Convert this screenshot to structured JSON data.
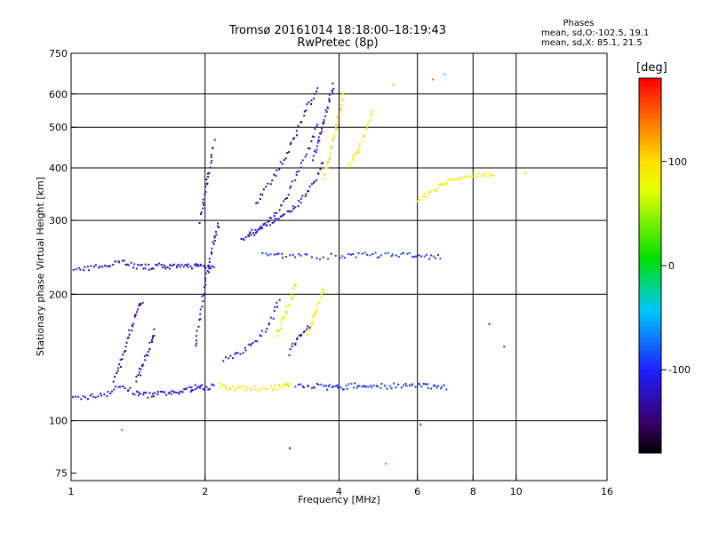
{
  "header": {
    "title_line1": "Tromsø 20161014 18:18:00–18:19:43",
    "title_line2": "RwPretec (8p)",
    "phases_label": "Phases",
    "stat_o": "mean, sd,O:-102.5, 19.1",
    "stat_x": "mean, sd,X:  85.1, 21.5"
  },
  "colorbar": {
    "title": "[deg]",
    "ticks": [
      "100",
      "0",
      "-100"
    ],
    "tick_values": [
      100,
      0,
      -100
    ],
    "range": [
      -180,
      180
    ]
  },
  "chart_data": {
    "type": "scatter",
    "title": "Tromsø 20161014 18:18:00–18:19:43",
    "subtitle": "RwPretec (8p)",
    "xlabel": "Frequency [MHz]",
    "ylabel": "Stationary phase Virtual Height [km]",
    "x_scale": "log",
    "y_scale": "log",
    "xlim": [
      1,
      16
    ],
    "ylim": [
      72,
      750
    ],
    "x_ticks": [
      1,
      2,
      4,
      6,
      8,
      10,
      16
    ],
    "x_tick_labels": [
      "1",
      "2",
      "4",
      "6",
      "8",
      "10",
      "16"
    ],
    "y_ticks": [
      75,
      100,
      200,
      300,
      400,
      500,
      600,
      750
    ],
    "y_tick_labels": [
      "75",
      "100",
      "200",
      "300",
      "400",
      "500",
      "600",
      "750"
    ],
    "x_grid": [
      2,
      4,
      6,
      8,
      10
    ],
    "y_grid": [
      100,
      200,
      300,
      400,
      500,
      600
    ],
    "grid": true,
    "color_by": "phase_deg",
    "traces": [
      {
        "f": [
          1.0,
          1.1,
          1.2,
          1.3,
          1.4,
          1.5,
          1.6,
          1.7,
          1.8,
          1.9,
          2.0,
          2.1
        ],
        "h": [
          113,
          114,
          116,
          121,
          116,
          115,
          116,
          116,
          118,
          120,
          120,
          121
        ],
        "phase": -112
      },
      {
        "f": [
          1.0,
          1.1,
          1.2,
          1.3,
          1.4,
          1.5,
          1.6,
          1.7,
          1.8,
          1.9,
          2.0,
          2.1
        ],
        "h": [
          228,
          230,
          236,
          240,
          233,
          232,
          234,
          232,
          233,
          234,
          233,
          234
        ],
        "phase": -118
      },
      {
        "f": [
          1.25,
          1.3,
          1.35,
          1.4,
          1.45
        ],
        "h": [
          125,
          140,
          160,
          180,
          195
        ],
        "phase": -128
      },
      {
        "f": [
          1.4,
          1.45,
          1.5,
          1.55
        ],
        "h": [
          125,
          135,
          150,
          165
        ],
        "phase": -125
      },
      {
        "f": [
          1.9,
          1.95,
          2.0,
          2.05,
          2.1,
          2.15
        ],
        "h": [
          150,
          180,
          210,
          240,
          270,
          300
        ],
        "phase": -120
      },
      {
        "f": [
          1.95,
          2.0,
          2.05,
          2.1
        ],
        "h": [
          300,
          350,
          400,
          470
        ],
        "phase": -130
      },
      {
        "f": [
          2.15,
          2.3,
          2.5,
          2.8,
          3.0,
          3.1
        ],
        "h": [
          122,
          120,
          119,
          120,
          121,
          122
        ],
        "phase": 95
      },
      {
        "f": [
          3.2,
          3.5,
          3.8,
          4.0,
          4.3,
          4.6,
          5.0,
          5.5,
          6.0,
          6.5,
          7.0
        ],
        "h": [
          121,
          121,
          120,
          120,
          121,
          121,
          121,
          121,
          121,
          121,
          120
        ],
        "phase": -95
      },
      {
        "f": [
          2.2,
          2.4,
          2.6,
          2.8,
          2.95
        ],
        "h": [
          140,
          145,
          155,
          170,
          200
        ],
        "phase": -110
      },
      {
        "f": [
          2.9,
          3.0,
          3.1,
          3.2
        ],
        "h": [
          160,
          175,
          190,
          215
        ],
        "phase": 60
      },
      {
        "f": [
          3.4,
          3.5,
          3.6,
          3.7
        ],
        "h": [
          160,
          175,
          190,
          210
        ],
        "phase": 80
      },
      {
        "f": [
          3.1,
          3.25,
          3.45
        ],
        "h": [
          145,
          160,
          170
        ],
        "phase": -125
      },
      {
        "f": [
          2.4,
          2.6,
          2.8,
          3.0,
          3.2,
          3.4,
          3.6
        ],
        "h": [
          268,
          280,
          300,
          330,
          380,
          440,
          520
        ],
        "phase": -125
      },
      {
        "f": [
          2.6,
          2.8,
          3.0,
          3.2,
          3.4,
          3.6
        ],
        "h": [
          330,
          370,
          420,
          480,
          560,
          620
        ],
        "phase": -140
      },
      {
        "f": [
          2.5,
          2.7,
          2.9,
          3.1,
          3.3,
          3.5,
          3.7
        ],
        "h": [
          280,
          290,
          300,
          315,
          335,
          365,
          420
        ],
        "phase": -115
      },
      {
        "f": [
          3.5,
          3.6,
          3.7,
          3.8,
          3.9
        ],
        "h": [
          420,
          470,
          520,
          580,
          640
        ],
        "phase": -112
      },
      {
        "f": [
          3.7,
          3.8,
          3.9,
          4.0,
          4.1
        ],
        "h": [
          380,
          420,
          470,
          540,
          620
        ],
        "phase": 95
      },
      {
        "f": [
          4.2,
          4.4,
          4.6,
          4.8
        ],
        "h": [
          400,
          440,
          490,
          560
        ],
        "phase": 90
      },
      {
        "f": [
          2.7,
          3.0,
          3.4,
          4.0,
          4.5,
          5.0,
          5.6,
          6.2,
          6.8
        ],
        "h": [
          250,
          248,
          246,
          246,
          248,
          248,
          248,
          246,
          245
        ],
        "phase": -95
      },
      {
        "f": [
          6.0,
          6.4,
          6.8,
          7.2,
          7.8,
          8.4,
          9.0
        ],
        "h": [
          330,
          350,
          365,
          375,
          382,
          385,
          388
        ],
        "phase": 80
      }
    ],
    "scatter_points": [
      {
        "f": 1.3,
        "h": 95,
        "phase": 10
      },
      {
        "f": 3.1,
        "h": 86,
        "phase": -160
      },
      {
        "f": 5.1,
        "h": 79,
        "phase": 150
      },
      {
        "f": 6.1,
        "h": 98,
        "phase": -100
      },
      {
        "f": 6.5,
        "h": 650,
        "phase": 140
      },
      {
        "f": 6.9,
        "h": 668,
        "phase": -40
      },
      {
        "f": 5.3,
        "h": 630,
        "phase": 40
      },
      {
        "f": 10.5,
        "h": 389,
        "phase": 110
      },
      {
        "f": 9.4,
        "h": 150,
        "phase": -100
      },
      {
        "f": 8.7,
        "h": 170,
        "phase": -130
      }
    ]
  }
}
